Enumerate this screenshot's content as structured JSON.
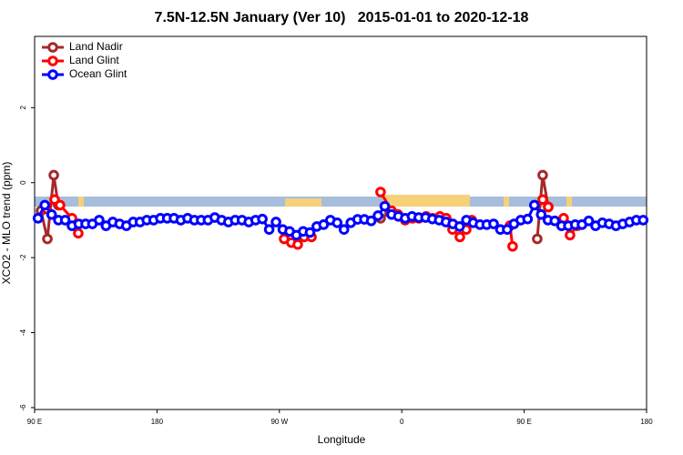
{
  "chart_data": {
    "type": "line",
    "title": "7.5N-12.5N January (Ver 10)   2015-01-01 to 2020-12-18",
    "xlabel": "Longitude",
    "ylabel": "XCO2 - MLO trend (ppm)",
    "xlim": [
      90,
      540
    ],
    "ylim": [
      -6.05,
      3.9
    ],
    "xticks": [
      {
        "value": 90,
        "label": "90 E"
      },
      180,
      {
        "value": 270,
        "label": "90 W"
      },
      {
        "value": 360,
        "label": "0"
      },
      {
        "value": 450,
        "label": "90 E"
      },
      {
        "value": 540,
        "label": "180"
      }
    ],
    "yticks": [
      2,
      0,
      -2,
      -4,
      -6
    ],
    "legend": "top-left",
    "x": [
      92.5,
      97.5,
      102.5,
      107.5,
      112.5,
      117.5,
      122.5,
      127.5,
      132.5,
      137.5,
      142.5,
      147.5,
      152.5,
      157.5,
      162.5,
      167.5,
      172.5,
      177.5,
      182.5,
      187.5,
      192.5,
      197.5,
      202.5,
      207.5,
      212.5,
      217.5,
      222.5,
      227.5,
      232.5,
      237.5,
      242.5,
      247.5,
      252.5,
      257.5,
      262.5,
      267.5,
      272.5,
      277.5,
      282.5,
      287.5,
      292.5,
      297.5,
      302.5,
      307.5,
      312.5,
      317.5,
      322.5,
      327.5,
      332.5,
      337.5,
      342.5,
      347.5,
      352.5,
      357.5,
      362.5,
      367.5,
      372.5,
      377.5,
      382.5,
      387.5,
      392.5,
      397.5,
      402.5,
      407.5,
      412.5,
      417.5,
      422.5,
      427.5,
      432.5,
      437.5,
      442.5,
      447.5,
      452.5,
      457.5,
      462.5,
      467.5,
      472.5,
      477.5,
      482.5,
      487.5,
      492.5,
      497.5,
      502.5,
      507.5,
      512.5,
      517.5,
      522.5,
      527.5,
      532.5,
      537.5
    ],
    "series": [
      {
        "name": "Land Nadir",
        "color": "#a52a2a",
        "x": [
          94.7,
          99.4,
          104.1,
          107.4,
          null,
          344.4,
          351.1,
          null,
          459.6,
          463.6,
          467.7
        ],
        "values": [
          -0.75,
          -1.5,
          0.2,
          -0.6,
          null,
          -0.95,
          -0.8,
          null,
          -1.5,
          0.2,
          -0.65
        ]
      },
      {
        "name": "Land Glint",
        "color": "#ff0000",
        "x": [
          98.7,
          104.7,
          108.7,
          117.5,
          122.1,
          null,
          273.5,
          278.8,
          283.5,
          288.2,
          293.6,
          null,
          344.4,
          352.5,
          357.2,
          362.5,
          367.9,
          372.6,
          377.9,
          382.6,
          388.0,
          392.7,
          397.3,
          402.7,
          407.4,
          411.4,
          null,
          439.5,
          441.5,
          null,
          463.6,
          467.7,
          null,
          479.0,
          483.7,
          489.1
        ],
        "values": [
          -0.7,
          -0.45,
          -0.6,
          -0.95,
          -1.35,
          null,
          -1.5,
          -1.6,
          -1.65,
          -1.45,
          -1.45,
          null,
          -0.25,
          -0.75,
          -0.85,
          -1.0,
          -0.95,
          -0.95,
          -0.9,
          -0.95,
          -0.9,
          -0.95,
          -1.25,
          -1.45,
          -1.25,
          -1.0,
          null,
          -1.15,
          -1.7,
          null,
          -0.45,
          -0.65,
          null,
          -0.95,
          -1.4,
          -1.15
        ]
      },
      {
        "name": "Ocean Glint",
        "color": "#0000ff",
        "values": [
          -0.95,
          -0.6,
          -0.85,
          -1.0,
          -1.0,
          -1.15,
          -1.1,
          -1.1,
          -1.1,
          -1.0,
          -1.15,
          -1.05,
          -1.1,
          -1.15,
          -1.05,
          -1.05,
          -1.0,
          -1.0,
          -0.95,
          -0.95,
          -0.95,
          -1.0,
          -0.95,
          -1.0,
          -1.0,
          -1.0,
          -0.93,
          -1.0,
          -1.05,
          -1.0,
          -1.0,
          -1.05,
          -1.0,
          -0.97,
          -1.25,
          -1.05,
          -1.25,
          -1.3,
          -1.4,
          -1.3,
          -1.33,
          -1.17,
          -1.12,
          -1.0,
          -1.07,
          -1.25,
          -1.07,
          -0.98,
          -0.98,
          -1.02,
          -0.88,
          -0.63,
          -0.85,
          -0.9,
          -0.95,
          -0.9,
          -0.93,
          -0.93,
          -0.97,
          -1.0,
          -1.05,
          -1.1,
          -1.17,
          -1.0,
          -1.07,
          -1.12,
          -1.12,
          -1.1,
          -1.25,
          -1.25,
          -1.1,
          -1.0,
          -0.97,
          -0.6,
          -0.85,
          -1.0,
          -1.02,
          -1.15,
          -1.15,
          -1.12,
          -1.12,
          -1.02,
          -1.15,
          -1.07,
          -1.1,
          -1.15,
          -1.1,
          -1.05,
          -1.0,
          -1.0
        ]
      }
    ]
  }
}
